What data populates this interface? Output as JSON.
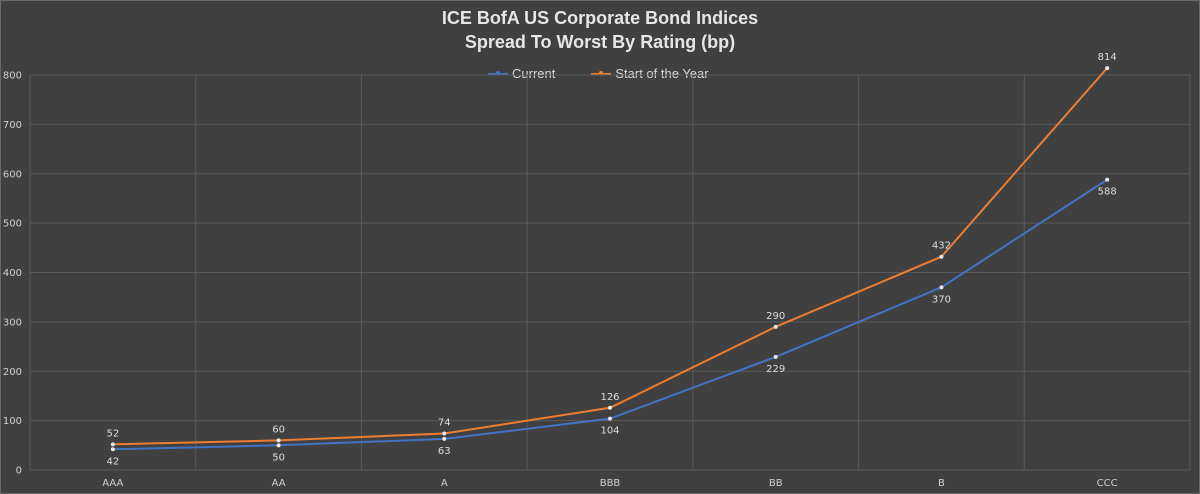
{
  "chart_data": {
    "type": "line",
    "title": "ICE BofA US Corporate Bond Indices",
    "subtitle": "Spread To Worst By Rating (bp)",
    "categories": [
      "AAA",
      "AA",
      "A",
      "BBB",
      "BB",
      "B",
      "CCC"
    ],
    "series": [
      {
        "name": "Current",
        "color": "#4472c4",
        "values": [
          42,
          50,
          63,
          104,
          229,
          370,
          588
        ]
      },
      {
        "name": "Start of the Year",
        "color": "#ed7d31",
        "values": [
          52,
          60,
          74,
          126,
          290,
          432,
          814
        ]
      }
    ],
    "ylim": [
      0,
      800
    ],
    "yticks": [
      0,
      100,
      200,
      300,
      400,
      500,
      600,
      700,
      800
    ],
    "grid": true,
    "legend_position": "top-center",
    "background": "#404040",
    "grid_color": "#5a5a5a"
  }
}
